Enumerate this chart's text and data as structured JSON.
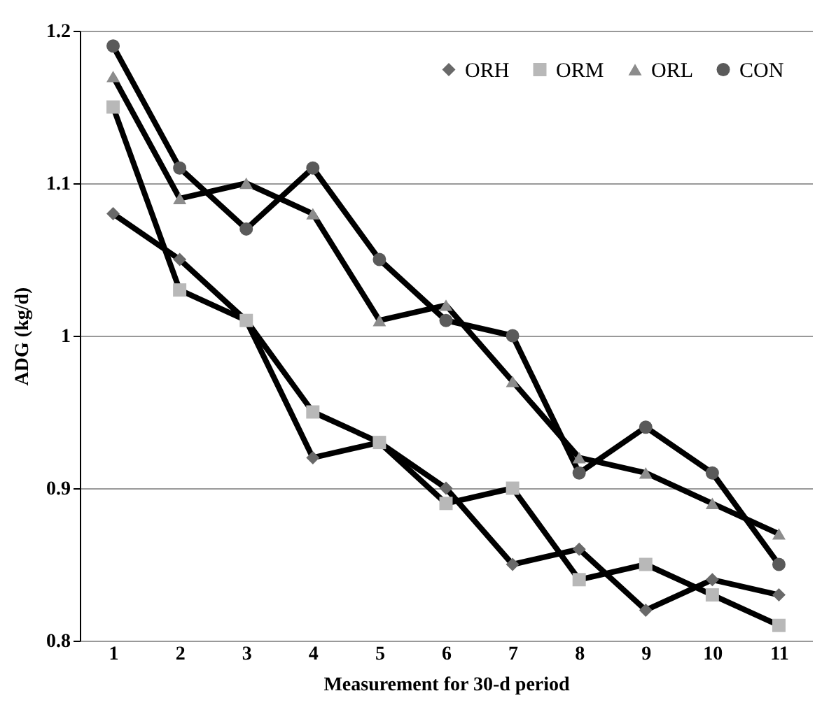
{
  "chart_data": {
    "type": "line",
    "xlabel": "Measurement for 30-d period",
    "ylabel": "ADG (kg/d)",
    "categories": [
      "1",
      "2",
      "3",
      "4",
      "5",
      "6",
      "7",
      "8",
      "9",
      "10",
      "11"
    ],
    "series": [
      {
        "name": "ORH",
        "color": "#696969",
        "marker": "diamond",
        "values": [
          1.08,
          1.05,
          1.01,
          0.92,
          0.93,
          0.9,
          0.85,
          0.86,
          0.82,
          0.84,
          0.83
        ]
      },
      {
        "name": "ORM",
        "color": "#b8b8b8",
        "marker": "square",
        "values": [
          1.15,
          1.03,
          1.01,
          0.95,
          0.93,
          0.89,
          0.9,
          0.84,
          0.85,
          0.83,
          0.81
        ]
      },
      {
        "name": "ORL",
        "color": "#8c8c8c",
        "marker": "triangle",
        "values": [
          1.17,
          1.09,
          1.1,
          1.08,
          1.01,
          1.02,
          0.97,
          0.92,
          0.91,
          0.89,
          0.87
        ]
      },
      {
        "name": "CON",
        "color": "#5a5a5a",
        "marker": "circle",
        "values": [
          1.19,
          1.11,
          1.07,
          1.11,
          1.05,
          1.01,
          1.0,
          0.91,
          0.94,
          0.91,
          0.85
        ]
      }
    ],
    "ylim": [
      0.8,
      1.2
    ],
    "yticks": [
      0.8,
      0.9,
      1,
      1.1,
      1.2
    ],
    "grid": "y",
    "legend": "top right",
    "line_style": "solid"
  }
}
